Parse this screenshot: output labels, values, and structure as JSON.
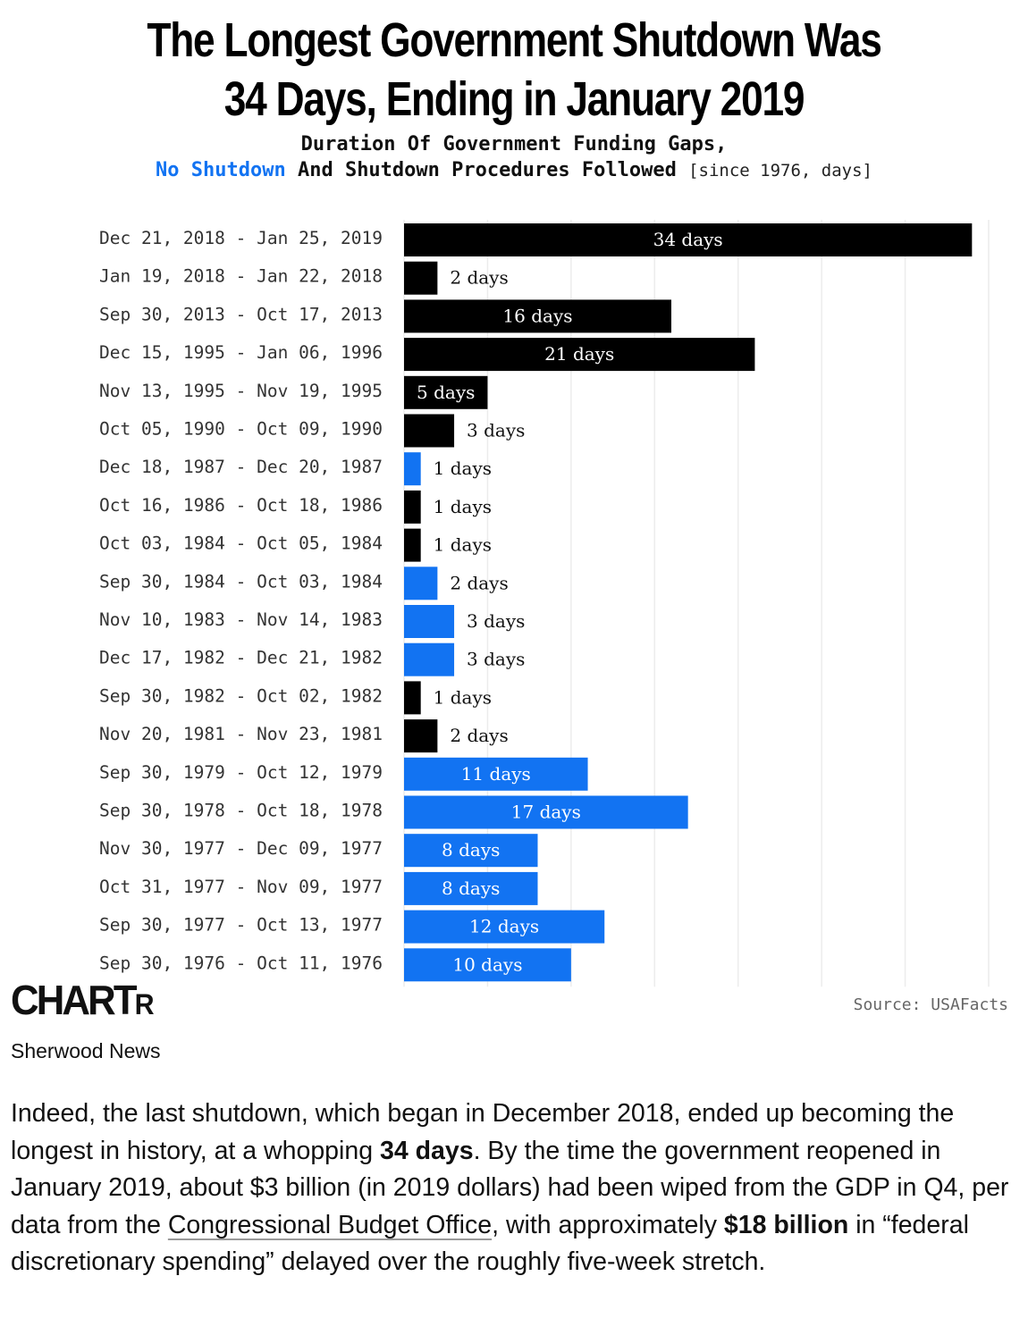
{
  "header": {
    "title_line1": "The Longest Government Shutdown Was",
    "title_line2": "34 Days, Ending in January 2019",
    "subtitle_line1": "Duration Of Government Funding Gaps,",
    "subtitle_blue": "No Shutdown",
    "subtitle_rest": " And Shutdown Procedures Followed ",
    "subtitle_note": "[since 1976, days]"
  },
  "colors": {
    "no_shutdown": "#1273f2",
    "shutdown": "#000000",
    "grid": "#ececec",
    "label_text": "#333333"
  },
  "chart_data": {
    "type": "bar",
    "orientation": "horizontal",
    "value_suffix": " days",
    "xlim": [
      0,
      35
    ],
    "grid": true,
    "categories": [
      "Dec 21, 2018 - Jan 25, 2019",
      "Jan 19, 2018 - Jan 22, 2018",
      "Sep 30, 2013 - Oct 17, 2013",
      "Dec 15, 1995 - Jan 06, 1996",
      "Nov 13, 1995 - Nov 19, 1995",
      "Oct 05, 1990 - Oct 09, 1990",
      "Dec 18, 1987 - Dec 20, 1987",
      "Oct 16, 1986 - Oct 18, 1986",
      "Oct 03, 1984 - Oct 05, 1984",
      "Sep 30, 1984 - Oct 03, 1984",
      "Nov 10, 1983 - Nov 14, 1983",
      "Dec 17, 1982 - Dec 21, 1982",
      "Sep 30, 1982 - Oct 02, 1982",
      "Nov 20, 1981 - Nov 23, 1981",
      "Sep 30, 1979 - Oct 12, 1979",
      "Sep 30, 1978 - Oct 18, 1978",
      "Nov 30, 1977 - Dec 09, 1977",
      "Oct 31, 1977 - Nov 09, 1977",
      "Sep 30, 1977 - Oct 13, 1977",
      "Sep 30, 1976 - Oct 11, 1976"
    ],
    "values": [
      34,
      2,
      16,
      21,
      5,
      3,
      1,
      1,
      1,
      2,
      3,
      3,
      1,
      2,
      11,
      17,
      8,
      8,
      12,
      10
    ],
    "shutdown_procedures": [
      true,
      true,
      true,
      true,
      true,
      true,
      false,
      true,
      true,
      false,
      false,
      false,
      true,
      true,
      false,
      false,
      false,
      false,
      false,
      false
    ]
  },
  "footer": {
    "logo_big": "CHART",
    "logo_small": "R",
    "source": "Source: USAFacts",
    "publisher": "Sherwood News"
  },
  "article": {
    "p1": "Indeed, the last shutdown, which began in December 2018, ended up becoming the longest in history, at a whopping ",
    "b1": "34 days",
    "p2": ". By the time the government reopened in January 2019, about $3 billion (in 2019 dollars) had been wiped from the GDP in Q4, per data from the ",
    "link": "Congressional Budget Office",
    "p3": ", with approximately ",
    "b2": "$18 billion",
    "p4": " in “federal discretionary spending” delayed over the roughly five-week stretch."
  }
}
